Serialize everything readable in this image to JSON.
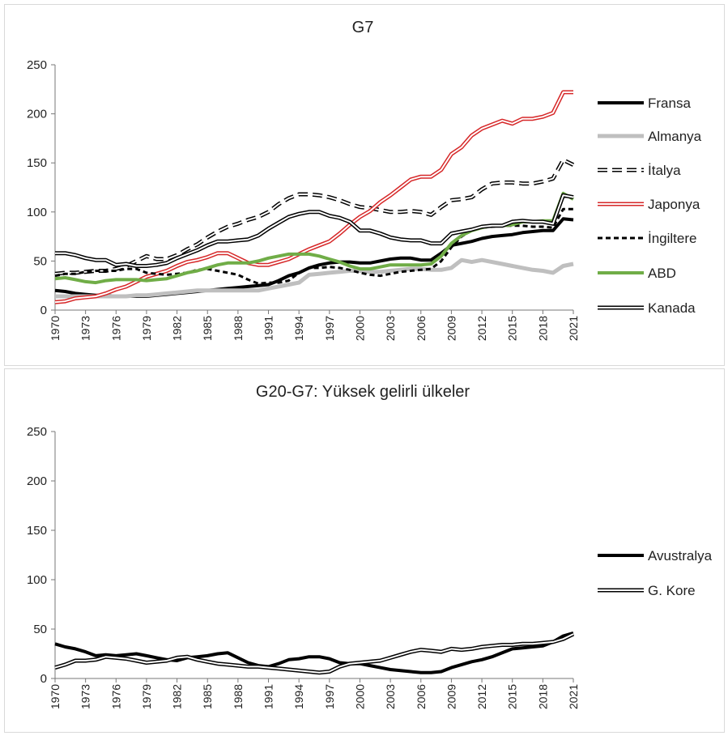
{
  "chart_data": [
    {
      "type": "line",
      "title": "G7",
      "categories": [
        "1970",
        null,
        null,
        "1973",
        null,
        null,
        "1976",
        null,
        null,
        "1979",
        null,
        null,
        "1982",
        null,
        null,
        "1985",
        null,
        null,
        "1988",
        null,
        null,
        "1991",
        null,
        null,
        "1994",
        null,
        null,
        "1997",
        null,
        null,
        "2000",
        null,
        null,
        "2003",
        null,
        null,
        "2006",
        null,
        null,
        "2009",
        null,
        null,
        "2012",
        null,
        null,
        "2015",
        null,
        null,
        "2018",
        null,
        null,
        "2021"
      ],
      "ylim": [
        0,
        250
      ],
      "yticks": [
        0,
        50,
        100,
        150,
        200,
        250
      ],
      "grid": false,
      "legend": "right",
      "series": [
        {
          "name": "Fransa",
          "color": "#000000",
          "width": 4,
          "dash": false,
          "double": false,
          "values": [
            20,
            19,
            17,
            16,
            15,
            15,
            14,
            14,
            14,
            14,
            15,
            16,
            17,
            18,
            19,
            20,
            21,
            22,
            23,
            24,
            25,
            26,
            30,
            35,
            38,
            43,
            46,
            48,
            49,
            49,
            48,
            48,
            50,
            52,
            53,
            53,
            51,
            51,
            58,
            66,
            68,
            70,
            73,
            75,
            76,
            77,
            79,
            80,
            81,
            81,
            93,
            92
          ]
        },
        {
          "name": "Almanya",
          "color": "#bfbfbf",
          "width": 5,
          "dash": false,
          "double": false,
          "values": [
            14,
            14,
            14,
            14,
            14,
            14,
            14,
            14,
            15,
            15,
            16,
            17,
            18,
            19,
            20,
            20,
            20,
            20,
            20,
            20,
            20,
            22,
            24,
            26,
            28,
            36,
            37,
            38,
            39,
            40,
            40,
            39,
            39,
            40,
            41,
            42,
            42,
            41,
            41,
            43,
            51,
            49,
            51,
            49,
            47,
            45,
            43,
            41,
            40,
            38,
            45,
            47
          ]
        },
        {
          "name": "İtalya",
          "color": "#000000",
          "width": 5,
          "dash": true,
          "double": true,
          "values": [
            37,
            38,
            38,
            39,
            40,
            40,
            42,
            45,
            50,
            55,
            52,
            52,
            56,
            62,
            67,
            74,
            80,
            85,
            88,
            92,
            95,
            100,
            108,
            114,
            118,
            118,
            117,
            115,
            112,
            108,
            105,
            104,
            102,
            100,
            100,
            101,
            100,
            97,
            105,
            112,
            113,
            115,
            123,
            129,
            130,
            130,
            129,
            129,
            131,
            134,
            153,
            148
          ]
        },
        {
          "name": "Japonya",
          "color": "#d62728",
          "width": 5,
          "dash": false,
          "double": true,
          "values": [
            8,
            9,
            12,
            13,
            14,
            17,
            21,
            24,
            29,
            34,
            37,
            40,
            45,
            49,
            51,
            54,
            58,
            58,
            53,
            48,
            46,
            46,
            49,
            52,
            57,
            62,
            66,
            70,
            78,
            87,
            95,
            101,
            110,
            117,
            125,
            133,
            136,
            136,
            143,
            159,
            166,
            178,
            185,
            189,
            193,
            190,
            195,
            195,
            197,
            201,
            222,
            222
          ]
        },
        {
          "name": "İngiltere",
          "color": "#000000",
          "width": 3,
          "dash": true,
          "double": false,
          "values": [
            35,
            37,
            37,
            39,
            40,
            40,
            40,
            42,
            42,
            38,
            37,
            36,
            37,
            38,
            41,
            42,
            40,
            38,
            36,
            31,
            27,
            28,
            28,
            30,
            38,
            43,
            43,
            44,
            43,
            41,
            38,
            36,
            35,
            37,
            39,
            40,
            41,
            42,
            50,
            64,
            75,
            81,
            84,
            85,
            86,
            86,
            86,
            85,
            85,
            84,
            103,
            103
          ]
        },
        {
          "name": "ABD",
          "color": "#70ad47",
          "width": 4,
          "dash": false,
          "double": false,
          "values": [
            32,
            33,
            31,
            29,
            28,
            30,
            31,
            31,
            31,
            30,
            31,
            32,
            35,
            38,
            40,
            43,
            46,
            48,
            48,
            48,
            50,
            53,
            55,
            57,
            57,
            57,
            55,
            52,
            49,
            45,
            42,
            42,
            44,
            46,
            46,
            46,
            46,
            47,
            55,
            68,
            76,
            81,
            84,
            86,
            86,
            87,
            90,
            90,
            91,
            91,
            119,
            113
          ]
        },
        {
          "name": "Kanada",
          "color": "#000000",
          "width": 5,
          "dash": false,
          "double": true,
          "values": [
            58,
            58,
            56,
            53,
            51,
            51,
            46,
            47,
            45,
            45,
            46,
            48,
            53,
            57,
            61,
            66,
            70,
            70,
            71,
            72,
            76,
            83,
            89,
            95,
            98,
            100,
            100,
            96,
            94,
            90,
            81,
            81,
            78,
            74,
            72,
            71,
            71,
            68,
            68,
            78,
            80,
            82,
            85,
            86,
            86,
            90,
            91,
            90,
            90,
            88,
            117,
            115
          ]
        }
      ]
    },
    {
      "type": "line",
      "title": "G20-G7: Yüksek gelirli ülkeler",
      "categories": [
        "1970",
        null,
        null,
        "1973",
        null,
        null,
        "1976",
        null,
        null,
        "1979",
        null,
        null,
        "1982",
        null,
        null,
        "1985",
        null,
        null,
        "1988",
        null,
        null,
        "1991",
        null,
        null,
        "1994",
        null,
        null,
        "1997",
        null,
        null,
        "2000",
        null,
        null,
        "2003",
        null,
        null,
        "2006",
        null,
        null,
        "2009",
        null,
        null,
        "2012",
        null,
        null,
        "2015",
        null,
        null,
        "2018",
        null,
        null,
        "2021"
      ],
      "ylim": [
        0,
        250
      ],
      "yticks": [
        0,
        50,
        100,
        150,
        200,
        250
      ],
      "grid": false,
      "legend": "right",
      "series": [
        {
          "name": "Avustralya",
          "color": "#000000",
          "width": 4,
          "dash": false,
          "double": false,
          "values": [
            35,
            32,
            30,
            27,
            23,
            24,
            23,
            24,
            25,
            23,
            21,
            19,
            18,
            21,
            22,
            23,
            25,
            26,
            21,
            16,
            13,
            12,
            15,
            19,
            20,
            22,
            22,
            20,
            16,
            15,
            15,
            13,
            11,
            9,
            8,
            7,
            6,
            6,
            7,
            11,
            14,
            17,
            19,
            22,
            26,
            30,
            31,
            32,
            33,
            37,
            43,
            46
          ]
        },
        {
          "name": "G. Kore",
          "color": "#000000",
          "width": 5,
          "dash": false,
          "double": true,
          "values": [
            11,
            14,
            18,
            18,
            19,
            22,
            21,
            20,
            18,
            16,
            17,
            18,
            21,
            22,
            19,
            17,
            15,
            14,
            13,
            12,
            12,
            11,
            10,
            9,
            8,
            7,
            6,
            7,
            12,
            15,
            16,
            17,
            18,
            21,
            24,
            27,
            29,
            28,
            27,
            30,
            29,
            30,
            32,
            33,
            34,
            34,
            35,
            35,
            36,
            37,
            40,
            45
          ]
        }
      ]
    }
  ]
}
